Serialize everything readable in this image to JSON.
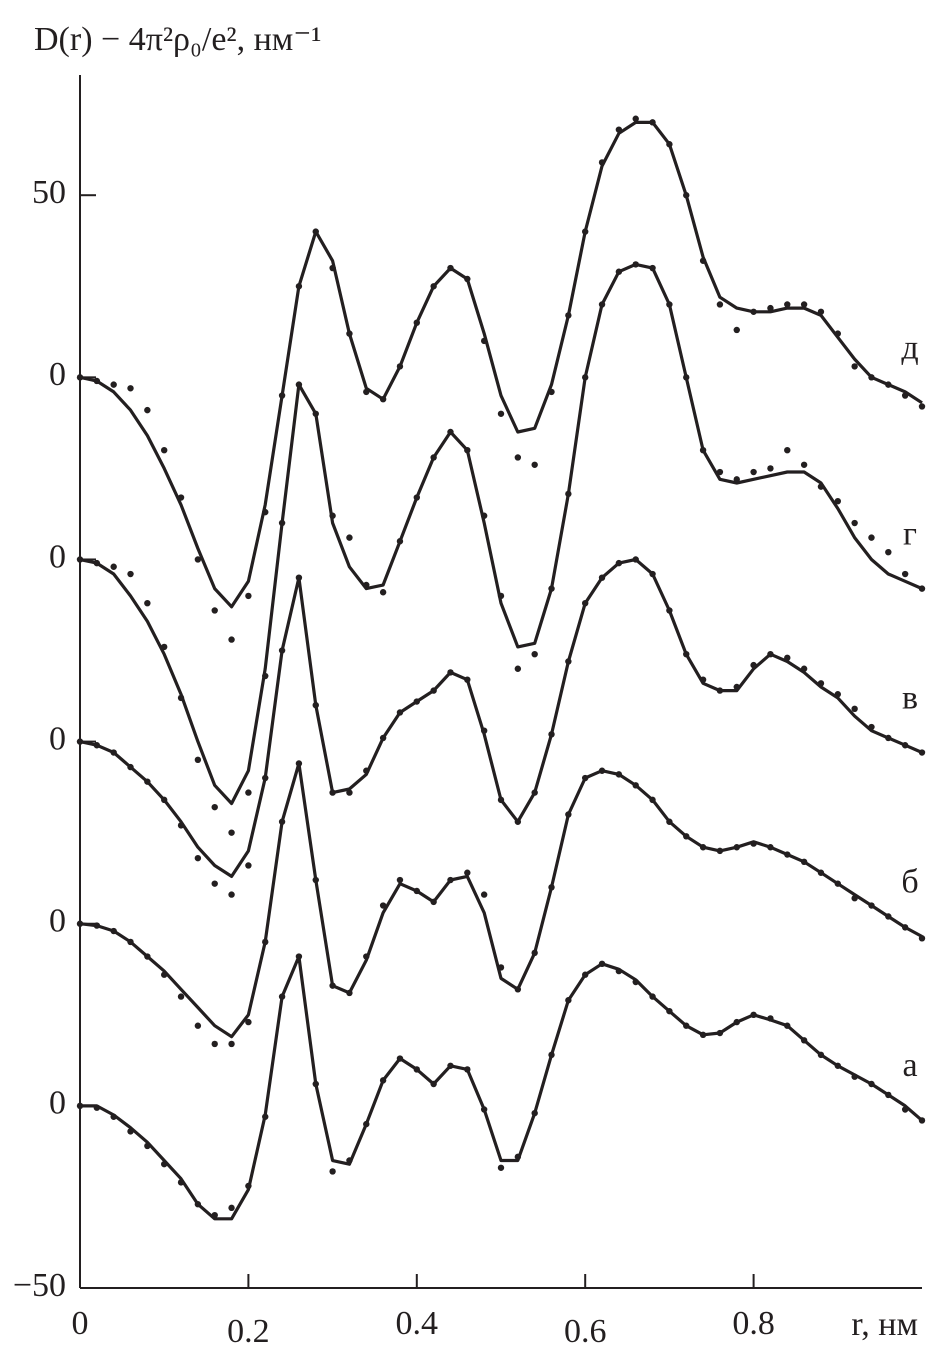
{
  "chart_data": {
    "type": "line",
    "title": "D(r) − 4π²ρ₀/e², нм⁻¹",
    "x_label": "r, нм",
    "x": [
      0,
      0.02,
      0.04,
      0.06,
      0.08,
      0.1,
      0.12,
      0.14,
      0.16,
      0.18,
      0.2,
      0.22,
      0.24,
      0.26,
      0.28,
      0.3,
      0.32,
      0.34,
      0.36,
      0.38,
      0.4,
      0.42,
      0.44,
      0.46,
      0.48,
      0.5,
      0.52,
      0.54,
      0.56,
      0.58,
      0.6,
      0.62,
      0.64,
      0.66,
      0.68,
      0.7,
      0.72,
      0.74,
      0.76,
      0.78,
      0.8,
      0.82,
      0.84,
      0.86,
      0.88,
      0.9,
      0.92,
      0.94,
      0.96,
      0.98,
      1.0
    ],
    "xlim": [
      0,
      1.0
    ],
    "xticks": [
      0,
      0.2,
      0.4,
      0.6,
      0.8
    ],
    "ylim": [
      -50,
      283
    ],
    "yticks": [
      {
        "value": -50,
        "label": "−50"
      },
      0,
      {
        "value": 50,
        "label": "0"
      },
      {
        "value": 100,
        "label": "0"
      },
      {
        "value": 150,
        "label": "0"
      },
      {
        "value": 200,
        "label": "0"
      },
      {
        "value": 250,
        "label": "50"
      }
    ],
    "series": [
      {
        "name": "а",
        "color": "#231f20",
        "values": [
          0,
          0,
          -2.5,
          -6,
          -10,
          -15,
          -20,
          -27,
          -31,
          -31,
          -23,
          -2.5,
          30,
          41,
          6,
          -15,
          -16,
          -5,
          7,
          13,
          10,
          6,
          11,
          10,
          -1,
          -15,
          -15,
          -2,
          14,
          29,
          36,
          39,
          37.5,
          34.6,
          30,
          26,
          22,
          19.5,
          20,
          23,
          25,
          23.6,
          22,
          18,
          14,
          11,
          8.5,
          6,
          3,
          0,
          -4
        ],
        "dots": [
          0,
          -0.5,
          -3,
          -7,
          -11,
          -16,
          -21,
          -27,
          -30,
          -28,
          -22,
          -3,
          30,
          41,
          6,
          -18,
          -15,
          -5,
          7,
          13,
          10,
          6,
          11,
          10,
          -1,
          -17,
          -14,
          -2,
          14,
          29,
          36,
          39,
          37,
          34,
          30,
          26,
          22,
          19.5,
          20,
          23,
          25,
          24,
          22,
          18,
          14,
          11,
          8,
          6,
          3,
          -1,
          -4
        ]
      },
      {
        "name": "б",
        "color": "#231f20",
        "values": [
          50,
          49.5,
          48,
          45,
          41,
          37,
          32,
          27,
          22,
          19,
          25,
          45,
          78,
          94,
          62,
          33,
          31,
          40,
          53,
          61,
          59,
          56,
          62,
          63,
          53,
          35,
          32,
          42,
          60,
          80,
          90,
          92,
          91,
          88,
          84,
          78,
          74,
          71,
          70,
          71,
          72.5,
          71,
          69,
          67,
          64,
          61,
          58,
          55,
          52,
          49,
          46.5
        ],
        "dots": [
          50,
          49.5,
          48,
          45,
          41,
          36,
          30,
          22,
          17,
          17,
          23,
          45,
          78,
          94,
          62,
          33,
          31,
          41,
          55,
          62,
          59,
          56,
          62,
          64,
          58,
          38,
          32,
          42,
          60,
          80,
          90,
          92,
          91,
          88,
          84,
          78,
          74,
          71,
          70,
          71,
          72,
          71,
          69,
          67,
          64,
          61,
          57,
          55,
          52,
          49,
          46
        ]
      },
      {
        "name": "в",
        "color": "#231f20",
        "values": [
          100,
          99,
          97,
          93,
          89,
          84,
          78,
          71,
          66,
          63,
          70,
          90,
          125,
          145,
          110,
          86,
          87,
          91,
          101,
          108,
          111,
          114,
          119,
          117,
          102,
          84,
          78,
          86,
          102,
          122,
          138,
          145,
          149,
          150,
          146,
          136,
          124,
          116,
          114,
          114,
          120,
          124,
          122,
          119,
          115,
          112,
          107,
          103,
          101,
          99,
          97
        ],
        "dots": [
          100,
          99,
          97,
          93,
          89,
          84,
          77,
          68,
          61,
          58,
          66,
          90,
          125,
          145,
          110,
          86,
          86,
          92,
          101,
          108,
          111,
          114,
          119,
          117,
          103,
          84,
          78,
          86,
          102,
          122,
          138,
          145,
          149,
          150,
          146,
          136,
          124,
          117,
          114,
          115,
          121,
          124,
          123,
          120,
          116,
          113,
          109,
          104,
          101,
          99,
          97
        ]
      },
      {
        "name": "г",
        "color": "#231f20",
        "values": [
          150,
          149,
          146,
          140,
          133,
          124,
          113,
          100,
          88,
          83,
          92,
          120,
          160,
          198,
          190,
          160,
          148,
          142,
          143,
          155,
          167,
          178,
          185,
          180,
          160,
          138,
          126,
          127,
          142,
          168,
          200,
          220,
          229,
          231,
          230,
          220,
          200,
          180,
          172,
          171,
          172,
          173,
          174,
          174,
          171,
          164,
          156,
          150,
          146,
          144,
          142
        ],
        "dots": [
          150,
          149,
          148,
          146,
          138,
          126,
          112,
          95,
          82,
          75,
          86,
          118,
          160,
          198,
          190,
          162,
          156,
          143,
          141,
          155,
          167,
          178,
          185,
          180,
          162,
          140,
          120,
          124,
          142,
          168,
          200,
          220,
          229,
          231,
          230,
          220,
          200,
          180,
          174,
          172,
          174,
          175,
          180,
          176,
          170,
          166,
          160,
          156,
          152,
          146,
          142
        ]
      },
      {
        "name": "д",
        "color": "#231f20",
        "values": [
          200,
          199,
          196,
          191,
          184,
          175,
          165,
          153,
          142,
          137,
          144,
          165,
          195,
          225,
          240,
          232,
          212,
          197,
          194,
          203,
          215,
          225,
          230,
          227,
          212,
          195,
          185,
          186,
          198,
          217,
          240,
          258,
          267,
          270,
          270,
          264,
          250,
          233,
          222,
          219,
          218,
          218,
          219,
          219,
          217,
          211,
          205,
          200,
          198,
          196,
          193
        ],
        "dots": [
          200,
          199,
          198,
          197,
          191,
          180,
          167,
          150,
          136,
          128,
          140,
          163,
          195,
          225,
          240,
          230,
          212,
          196,
          194,
          203,
          215,
          225,
          230,
          227,
          210,
          190,
          178,
          176,
          196,
          217,
          240,
          259,
          268,
          271,
          270,
          264,
          250,
          232,
          220,
          213,
          218,
          219,
          220,
          220,
          218,
          212,
          203,
          200,
          198,
          195,
          192
        ]
      }
    ]
  }
}
